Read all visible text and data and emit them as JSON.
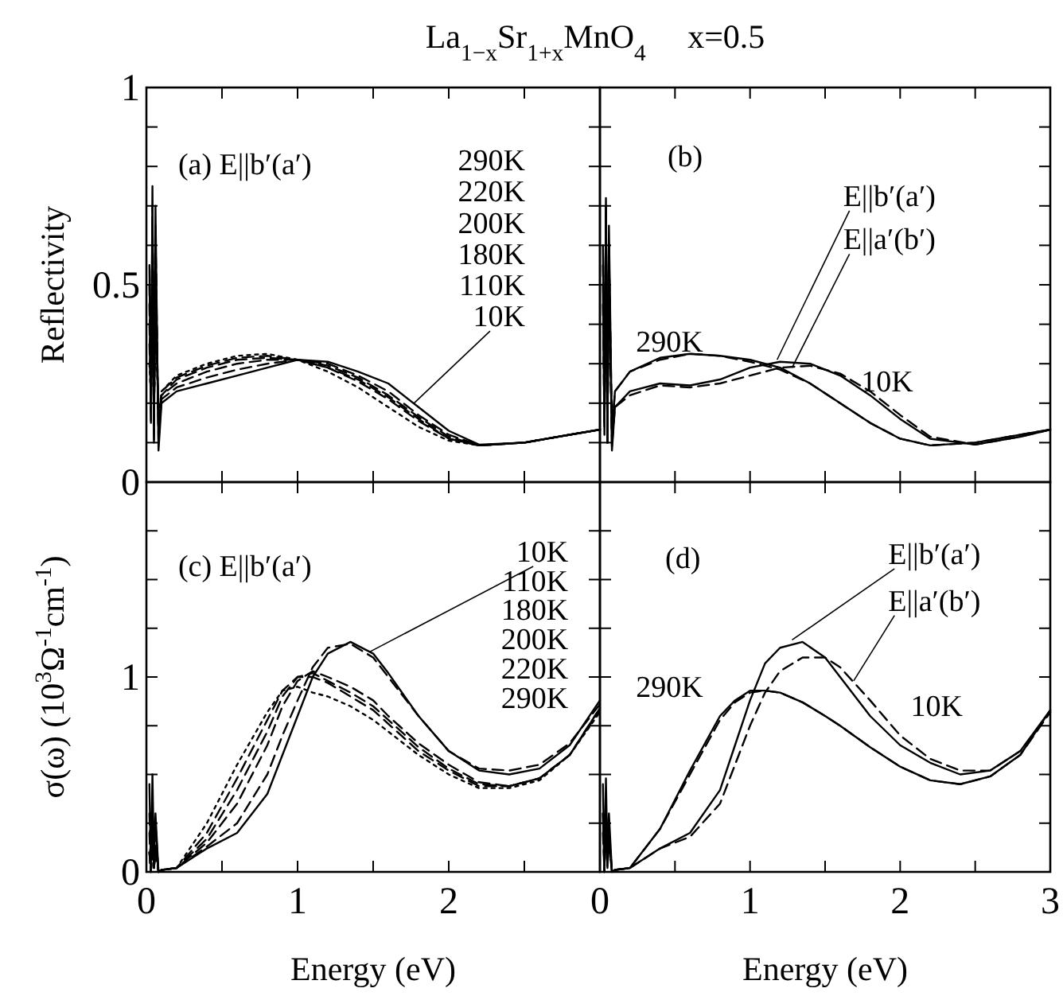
{
  "chart_data": [
    {
      "type": "line",
      "title": "La$_{1−x}$Sr$_{1+x}$MnO$_{4}$     x=0.5",
      "ylabel": "Reflectivity",
      "xlim": [
        0,
        3
      ],
      "xticks": [
        0,
        0.5,
        1,
        1.5,
        2,
        2.5,
        3
      ],
      "ylim": [
        0,
        1
      ],
      "yticks": [
        0,
        {
          "value": 0.1,
          "label": null
        },
        {
          "value": 0.2,
          "label": null
        },
        {
          "value": 0.3,
          "label": null
        },
        {
          "value": 0.4,
          "label": null
        },
        0.5,
        {
          "value": 0.6,
          "label": null
        },
        {
          "value": 0.7,
          "label": null
        },
        {
          "value": 0.8,
          "label": null
        },
        {
          "value": 0.9,
          "label": null
        },
        1
      ],
      "tick_labels": "y",
      "x": [
        0.02,
        0.03,
        0.04,
        0.05,
        0.06,
        0.08,
        0.1,
        0.2,
        0.4,
        0.6,
        0.8,
        1.0,
        1.2,
        1.4,
        1.6,
        1.8,
        2.0,
        2.2,
        2.5,
        2.8,
        3.0
      ],
      "series": [
        {
          "color": "#000000",
          "line_style": "solid",
          "values": [
            0.55,
            0.15,
            0.75,
            0.1,
            0.7,
            0.08,
            0.2,
            0.23,
            0.25,
            0.27,
            0.29,
            0.31,
            0.305,
            0.28,
            0.25,
            0.19,
            0.13,
            0.095,
            0.1,
            0.12,
            0.133
          ]
        },
        {
          "color": "#000000",
          "line_style": "dashed",
          "values": [
            0.5,
            0.15,
            0.7,
            0.1,
            0.65,
            0.1,
            0.21,
            0.24,
            0.265,
            0.285,
            0.3,
            0.31,
            0.3,
            0.27,
            0.23,
            0.17,
            0.12,
            0.093,
            0.1,
            0.12,
            0.133
          ]
        },
        {
          "color": "#000000",
          "line_style": "dashed",
          "values": [
            0.45,
            0.18,
            0.65,
            0.12,
            0.6,
            0.12,
            0.22,
            0.25,
            0.28,
            0.3,
            0.31,
            0.31,
            0.295,
            0.265,
            0.22,
            0.165,
            0.115,
            0.093,
            0.1,
            0.12,
            0.133
          ]
        },
        {
          "color": "#000000",
          "line_style": "dashed",
          "values": [
            0.4,
            0.2,
            0.6,
            0.14,
            0.55,
            0.14,
            0.22,
            0.26,
            0.29,
            0.31,
            0.315,
            0.31,
            0.29,
            0.26,
            0.215,
            0.16,
            0.11,
            0.093,
            0.1,
            0.12,
            0.133
          ]
        },
        {
          "color": "#000000",
          "line_style": "dashed",
          "values": [
            0.35,
            0.2,
            0.55,
            0.15,
            0.5,
            0.15,
            0.23,
            0.265,
            0.295,
            0.315,
            0.32,
            0.31,
            0.29,
            0.255,
            0.21,
            0.155,
            0.11,
            0.093,
            0.1,
            0.12,
            0.133
          ]
        },
        {
          "color": "#000000",
          "line_style": "dotted",
          "values": [
            0.3,
            0.22,
            0.5,
            0.16,
            0.45,
            0.16,
            0.23,
            0.27,
            0.3,
            0.32,
            0.325,
            0.31,
            0.28,
            0.24,
            0.19,
            0.14,
            0.105,
            0.093,
            0.1,
            0.12,
            0.133
          ]
        }
      ],
      "annotations": [
        "(a) E||b′(a′)",
        "290K",
        "220K",
        "200K",
        "180K",
        "110K",
        {
          "text": "10K",
          "x": 1.77,
          "y": 0.2
        }
      ]
    },
    {
      "type": "line",
      "xlim": [
        0,
        3
      ],
      "xticks": [
        0,
        0.5,
        1,
        1.5,
        2,
        2.5,
        3
      ],
      "ylim": [
        0,
        1
      ],
      "yticks": [
        0,
        0.1,
        0.2,
        0.3,
        0.4,
        0.5,
        0.6,
        0.7,
        0.8,
        0.9,
        1
      ],
      "tick_labels": false,
      "x": [
        0.02,
        0.03,
        0.04,
        0.05,
        0.06,
        0.08,
        0.1,
        0.2,
        0.4,
        0.6,
        0.8,
        1.0,
        1.2,
        1.4,
        1.6,
        1.8,
        2.0,
        2.2,
        2.5,
        2.8,
        3.0
      ],
      "series": [
        {
          "color": "#000000",
          "line_style": "solid",
          "values": [
            0.6,
            0.15,
            0.7,
            0.1,
            0.65,
            0.12,
            0.23,
            0.28,
            0.315,
            0.325,
            0.32,
            0.31,
            0.29,
            0.25,
            0.2,
            0.15,
            0.11,
            0.093,
            0.1,
            0.12,
            0.133
          ]
        },
        {
          "color": "#000000",
          "line_style": "dashed",
          "values": [
            0.55,
            0.18,
            0.68,
            0.12,
            0.6,
            0.13,
            0.23,
            0.28,
            0.31,
            0.325,
            0.32,
            0.305,
            0.285,
            0.25,
            0.2,
            0.15,
            0.11,
            0.093,
            0.1,
            0.12,
            0.133
          ]
        },
        {
          "color": "#000000",
          "line_style": "solid",
          "values": [
            0.5,
            0.12,
            0.72,
            0.1,
            0.6,
            0.08,
            0.19,
            0.23,
            0.25,
            0.245,
            0.26,
            0.29,
            0.305,
            0.3,
            0.27,
            0.22,
            0.16,
            0.11,
            0.095,
            0.115,
            0.133
          ]
        },
        {
          "color": "#000000",
          "line_style": "dashed",
          "values": [
            0.45,
            0.14,
            0.7,
            0.1,
            0.55,
            0.09,
            0.19,
            0.22,
            0.245,
            0.24,
            0.25,
            0.27,
            0.29,
            0.295,
            0.275,
            0.23,
            0.17,
            0.115,
            0.095,
            0.115,
            0.133
          ]
        }
      ],
      "annotations": [
        "(b)",
        {
          "text": "E||b′(a′)",
          "x": 1.18,
          "y": 0.31
        },
        {
          "text": "E||a′(b′)",
          "x": 1.28,
          "y": 0.29
        },
        "290K",
        "10K"
      ]
    },
    {
      "type": "line",
      "ylabel": "σ(ω) (10$^{3}$Ω$^{-1}$cm$^{-1}$)",
      "xlabel": "Energy (eV)",
      "xlim": [
        0,
        3
      ],
      "xticks": [
        0,
        {
          "value": 0.5,
          "label": null
        },
        1,
        {
          "value": 1.5,
          "label": null
        },
        2,
        {
          "value": 2.5,
          "label": null
        },
        {
          "value": 3,
          "label": null
        }
      ],
      "ylim": [
        0,
        2
      ],
      "yticks": [
        0,
        {
          "value": 0.25,
          "label": null
        },
        {
          "value": 0.5,
          "label": null
        },
        {
          "value": 0.75,
          "label": null
        },
        1,
        {
          "value": 1.25,
          "label": null
        },
        {
          "value": 1.5,
          "label": null
        },
        {
          "value": 1.75,
          "label": null
        },
        {
          "value": 2,
          "label": null
        }
      ],
      "x": [
        0.02,
        0.03,
        0.04,
        0.05,
        0.06,
        0.08,
        0.1,
        0.2,
        0.4,
        0.6,
        0.8,
        0.9,
        1.0,
        1.1,
        1.2,
        1.35,
        1.5,
        1.6,
        1.8,
        2.0,
        2.2,
        2.4,
        2.6,
        2.8,
        3.0
      ],
      "series": [
        {
          "color": "#000000",
          "line_style": "solid",
          "values": [
            0.45,
            0,
            0.5,
            0.05,
            0.3,
            0,
            0.01,
            0.02,
            0.12,
            0.2,
            0.4,
            0.6,
            0.8,
            1.0,
            1.12,
            1.18,
            1.12,
            1.02,
            0.8,
            0.62,
            0.52,
            0.5,
            0.53,
            0.65,
            0.88
          ]
        },
        {
          "color": "#000000",
          "line_style": "dashed",
          "values": [
            0.3,
            0,
            0.35,
            0.04,
            0.25,
            0,
            0.01,
            0.02,
            0.13,
            0.25,
            0.5,
            0.7,
            0.88,
            1.05,
            1.15,
            1.17,
            1.1,
            1.0,
            0.8,
            0.62,
            0.53,
            0.52,
            0.55,
            0.66,
            0.86
          ]
        },
        {
          "color": "#000000",
          "line_style": "dashed",
          "values": [
            0.2,
            0,
            0.25,
            0.03,
            0.15,
            0,
            0.01,
            0.02,
            0.15,
            0.35,
            0.65,
            0.85,
            0.98,
            1.03,
            1.0,
            0.95,
            0.88,
            0.8,
            0.66,
            0.55,
            0.46,
            0.44,
            0.48,
            0.6,
            0.84
          ]
        },
        {
          "color": "#000000",
          "line_style": "dashed",
          "values": [
            0.1,
            0,
            0.15,
            0.02,
            0.1,
            0,
            0.01,
            0.02,
            0.17,
            0.42,
            0.72,
            0.9,
            1.0,
            1.02,
            0.98,
            0.92,
            0.85,
            0.78,
            0.64,
            0.53,
            0.45,
            0.44,
            0.48,
            0.6,
            0.84
          ]
        },
        {
          "color": "#000000",
          "line_style": "dashed",
          "values": [
            0.1,
            0,
            0.15,
            0.02,
            0.1,
            0,
            0.01,
            0.02,
            0.2,
            0.48,
            0.78,
            0.93,
            1.0,
            1.0,
            0.97,
            0.9,
            0.83,
            0.76,
            0.62,
            0.52,
            0.44,
            0.44,
            0.48,
            0.6,
            0.83
          ]
        },
        {
          "color": "#000000",
          "line_style": "dotted",
          "values": [
            0.1,
            0,
            0.15,
            0.02,
            0.1,
            0,
            0.01,
            0.02,
            0.25,
            0.55,
            0.82,
            0.93,
            0.95,
            0.92,
            0.9,
            0.85,
            0.78,
            0.72,
            0.6,
            0.5,
            0.43,
            0.43,
            0.47,
            0.6,
            0.82
          ]
        }
      ],
      "annotations": [
        "(c) E||b′(a′)",
        {
          "text": "10K",
          "x": 1.48,
          "y": 1.13
        },
        "110K",
        "180K",
        "200K",
        "220K",
        "290K"
      ]
    },
    {
      "type": "line",
      "xlabel": "Energy (eV)",
      "xlim": [
        0,
        3
      ],
      "xticks": [
        0,
        {
          "value": 0.5,
          "label": null
        },
        1,
        {
          "value": 1.5,
          "label": null
        },
        2,
        {
          "value": 2.5,
          "label": null
        },
        3
      ],
      "ylim": [
        0,
        2
      ],
      "yticks": [
        0,
        0.25,
        0.5,
        0.75,
        1,
        1.25,
        1.5,
        1.75,
        2
      ],
      "tick_labels": "x",
      "x": [
        0.02,
        0.03,
        0.04,
        0.05,
        0.06,
        0.08,
        0.1,
        0.2,
        0.4,
        0.6,
        0.8,
        0.9,
        1.0,
        1.1,
        1.2,
        1.35,
        1.5,
        1.6,
        1.8,
        2.0,
        2.2,
        2.4,
        2.6,
        2.8,
        3.0
      ],
      "series": [
        {
          "color": "#000000",
          "line_style": "solid",
          "values": [
            0.45,
            0,
            0.48,
            0.05,
            0.3,
            0,
            0.01,
            0.02,
            0.12,
            0.2,
            0.42,
            0.65,
            0.88,
            1.07,
            1.15,
            1.18,
            1.1,
            1.0,
            0.8,
            0.65,
            0.56,
            0.5,
            0.52,
            0.62,
            0.83
          ]
        },
        {
          "color": "#000000",
          "line_style": "dashed",
          "values": [
            0.3,
            0,
            0.35,
            0.03,
            0.2,
            0,
            0.01,
            0.02,
            0.12,
            0.18,
            0.35,
            0.55,
            0.75,
            0.92,
            1.03,
            1.1,
            1.1,
            1.05,
            0.88,
            0.7,
            0.58,
            0.52,
            0.52,
            0.62,
            0.82
          ]
        },
        {
          "color": "#000000",
          "line_style": "solid",
          "values": [
            0.3,
            0,
            0.35,
            0.03,
            0.2,
            0,
            0.01,
            0.02,
            0.22,
            0.52,
            0.8,
            0.88,
            0.93,
            0.93,
            0.92,
            0.87,
            0.8,
            0.75,
            0.64,
            0.54,
            0.47,
            0.45,
            0.49,
            0.6,
            0.83
          ]
        },
        {
          "color": "#000000",
          "line_style": "dashed",
          "values": [
            0.2,
            0,
            0.25,
            0.02,
            0.15,
            0,
            0.01,
            0.02,
            0.22,
            0.5,
            0.78,
            0.87,
            0.92,
            0.93,
            0.92,
            0.87,
            0.8,
            0.75,
            0.64,
            0.54,
            0.47,
            0.45,
            0.49,
            0.6,
            0.82
          ]
        }
      ],
      "annotations": [
        "(d)",
        {
          "text": "E||b′(a′)",
          "x": 1.28,
          "y": 1.19
        },
        {
          "text": "E||a′(b′)",
          "x": 1.69,
          "y": 0.98
        },
        "290K",
        "10K"
      ]
    }
  ]
}
